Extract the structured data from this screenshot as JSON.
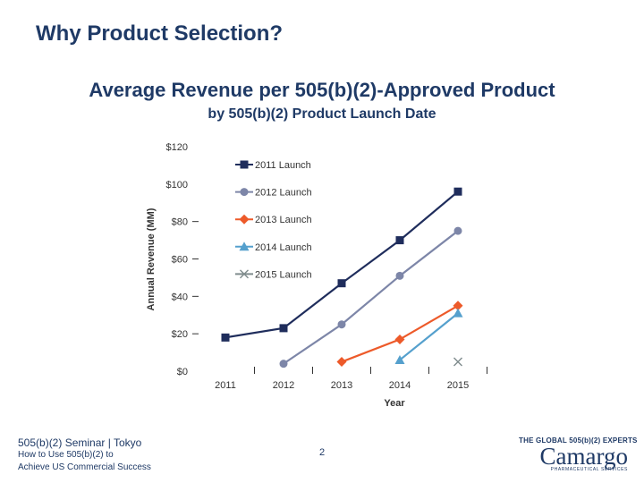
{
  "slide": {
    "title": "Why Product Selection?"
  },
  "chart_data": {
    "type": "line",
    "title": "Average Revenue per 505(b)(2)-Approved Product",
    "subtitle": "by 505(b)(2) Product Launch Date",
    "xlabel": "Year",
    "ylabel": "Annual Revenue (MM)",
    "categories": [
      "2011",
      "2012",
      "2013",
      "2014",
      "2015"
    ],
    "y_ticks": [
      "$0",
      "$20",
      "$40",
      "$60",
      "$80",
      "$100",
      "$120"
    ],
    "ylim": [
      0,
      120
    ],
    "grid": false,
    "legend_position": "top-left",
    "series": [
      {
        "name": "2011 Launch",
        "marker": "square",
        "color": "#1f2d5c",
        "values": [
          18,
          23,
          47,
          70,
          96
        ]
      },
      {
        "name": "2012 Launch",
        "marker": "circle",
        "color": "#7d86a8",
        "values": [
          null,
          4,
          25,
          51,
          75
        ]
      },
      {
        "name": "2013 Launch",
        "marker": "diamond",
        "color": "#ed5a2a",
        "values": [
          null,
          null,
          5,
          17,
          35
        ]
      },
      {
        "name": "2014 Launch",
        "marker": "triangle",
        "color": "#55a0cd",
        "values": [
          null,
          null,
          null,
          6,
          31
        ]
      },
      {
        "name": "2015 Launch",
        "marker": "x",
        "color": "#7f8c8d",
        "values": [
          null,
          null,
          null,
          null,
          5
        ]
      }
    ]
  },
  "footer": {
    "line1": "505(b)(2) Seminar | Tokyo",
    "line2": "How to Use 505(b)(2) to",
    "line3": "Achieve US Commercial Success",
    "page_number": "2"
  },
  "logo": {
    "tagline": "THE GLOBAL 505(b)(2) EXPERTS",
    "name": "Camargo",
    "subline": "PHARMACEUTICAL SERVICES"
  }
}
